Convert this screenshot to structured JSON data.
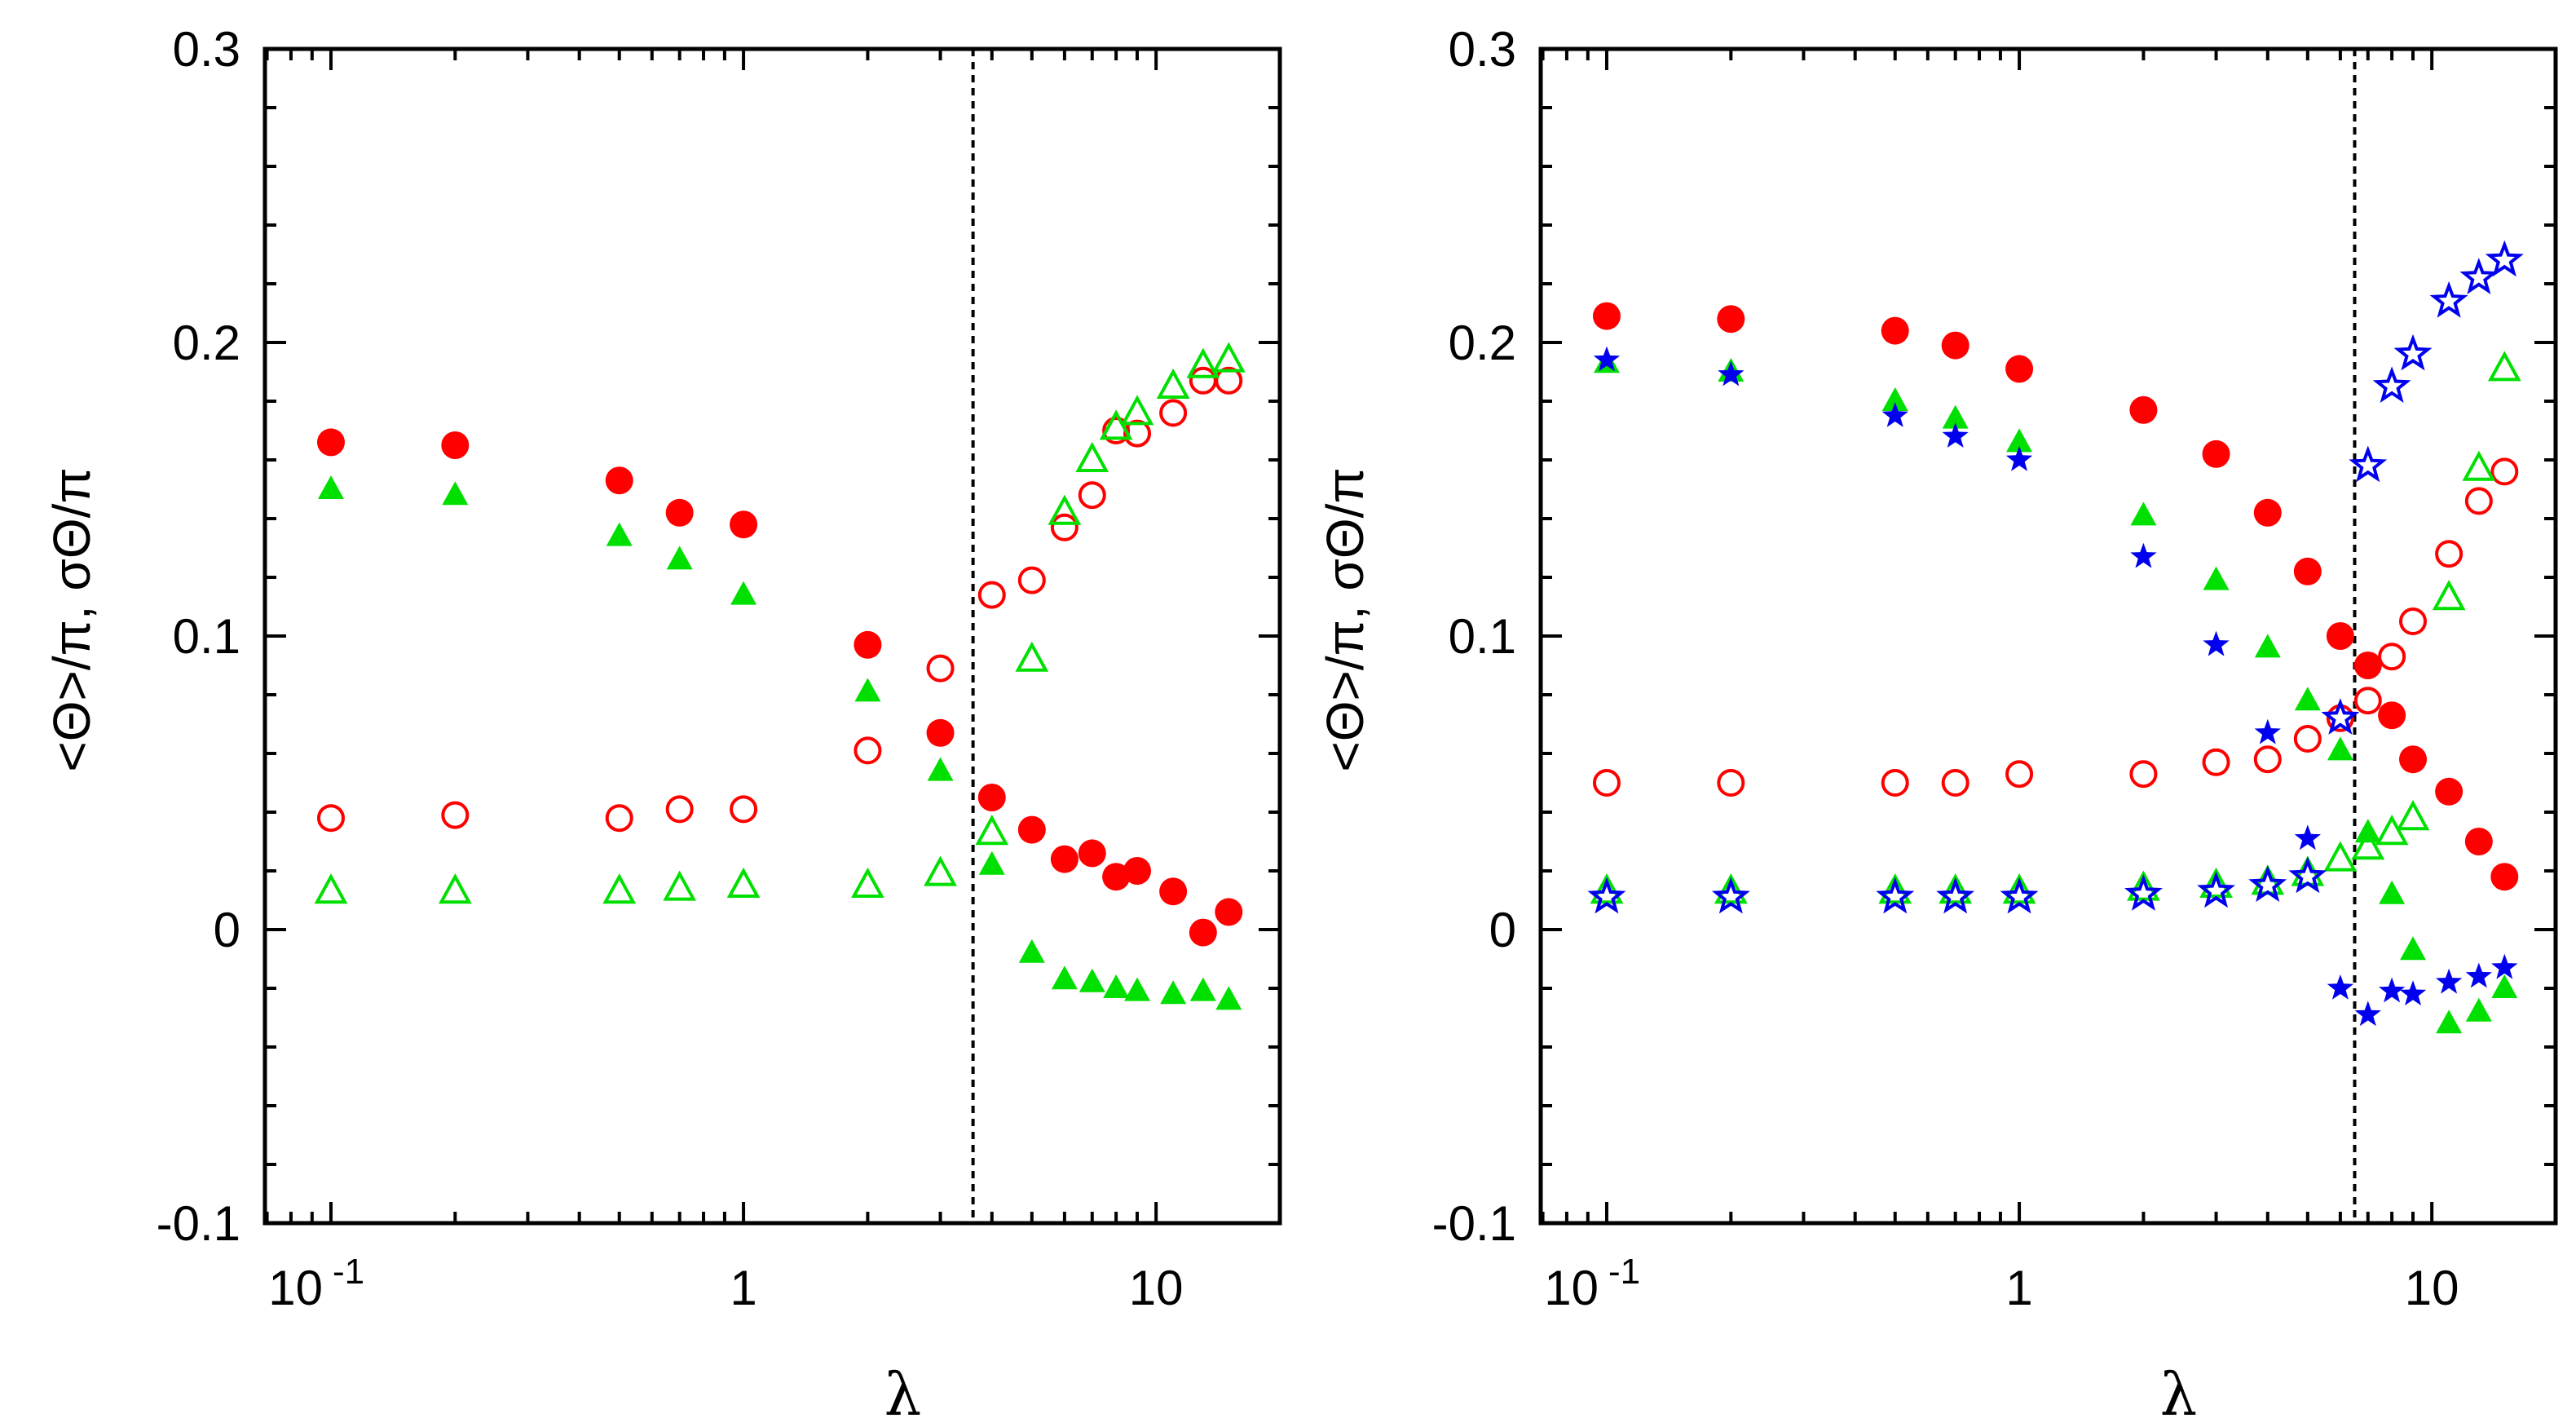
{
  "colors": {
    "red": "#ff0000",
    "green": "#00e000",
    "blue": "#0000ee",
    "axis": "#000000"
  },
  "chart_data": [
    {
      "type": "scatter",
      "xscale": "log",
      "xlabel": "λ",
      "ylabel": "<Θ>/π, σΘ/π",
      "ylim": [
        -0.1,
        0.3
      ],
      "xlim_log10": [
        -1.16,
        1.3
      ],
      "yticks": [
        "-0.1",
        "0",
        "0.1",
        "0.2",
        "0.3"
      ],
      "xticks": [
        {
          "base": "10",
          "exp": "-1"
        },
        {
          "base": "1",
          "exp": ""
        },
        {
          "base": "10",
          "exp": ""
        }
      ],
      "vline_x": 3.6,
      "series": [
        {
          "name": "red-mean",
          "marker": "circle-filled",
          "color": "red",
          "x": [
            0.1,
            0.2,
            0.5,
            0.7,
            1.0,
            2.0,
            3.0,
            4.0,
            5.0,
            6.0,
            7.0,
            8.0,
            9.0,
            11.0,
            13.0,
            15.0
          ],
          "y": [
            0.166,
            0.165,
            0.153,
            0.142,
            0.138,
            0.097,
            0.067,
            0.045,
            0.034,
            0.024,
            0.026,
            0.018,
            0.02,
            0.013,
            -0.001,
            0.006
          ]
        },
        {
          "name": "red-sigma",
          "marker": "circle-open",
          "color": "red",
          "x": [
            0.1,
            0.2,
            0.5,
            0.7,
            1.0,
            2.0,
            3.0,
            4.0,
            5.0,
            6.0,
            7.0,
            8.0,
            9.0,
            11.0,
            13.0,
            15.0
          ],
          "y": [
            0.038,
            0.039,
            0.038,
            0.041,
            0.041,
            0.061,
            0.089,
            0.114,
            0.119,
            0.137,
            0.148,
            0.17,
            0.169,
            0.176,
            0.187,
            0.187
          ]
        },
        {
          "name": "green-mean",
          "marker": "triangle-filled",
          "color": "green",
          "x": [
            0.1,
            0.2,
            0.5,
            0.7,
            1.0,
            2.0,
            3.0,
            4.0,
            5.0,
            6.0,
            7.0,
            8.0,
            9.0,
            11.0,
            13.0,
            15.0
          ],
          "y": [
            0.15,
            0.148,
            0.134,
            0.126,
            0.114,
            0.081,
            0.054,
            0.022,
            -0.008,
            -0.017,
            -0.018,
            -0.02,
            -0.021,
            -0.022,
            -0.021,
            -0.024
          ]
        },
        {
          "name": "green-sigma",
          "marker": "triangle-open",
          "color": "green",
          "x": [
            0.1,
            0.2,
            0.5,
            0.7,
            1.0,
            2.0,
            3.0,
            4.0,
            5.0,
            6.0,
            7.0,
            8.0,
            9.0,
            11.0,
            13.0,
            15.0
          ],
          "y": [
            0.013,
            0.013,
            0.013,
            0.014,
            0.015,
            0.015,
            0.019,
            0.033,
            0.092,
            0.142,
            0.16,
            0.171,
            0.176,
            0.185,
            0.192,
            0.194
          ]
        }
      ]
    },
    {
      "type": "scatter",
      "xscale": "log",
      "xlabel": "λ",
      "ylabel": "<Θ>/π, σΘ/π",
      "ylim": [
        -0.1,
        0.3
      ],
      "xlim_log10": [
        -1.16,
        1.3
      ],
      "yticks": [
        "-0.1",
        "0",
        "0.1",
        "0.2",
        "0.3"
      ],
      "xticks": [
        {
          "base": "10",
          "exp": "-1"
        },
        {
          "base": "1",
          "exp": ""
        },
        {
          "base": "10",
          "exp": ""
        }
      ],
      "vline_x": 6.5,
      "series": [
        {
          "name": "red-mean",
          "marker": "circle-filled",
          "color": "red",
          "x": [
            0.1,
            0.2,
            0.5,
            0.7,
            1.0,
            2.0,
            3.0,
            4.0,
            5.0,
            6.0,
            7.0,
            8.0,
            9.0,
            11.0,
            13.0,
            15.0
          ],
          "y": [
            0.209,
            0.208,
            0.204,
            0.199,
            0.191,
            0.177,
            0.162,
            0.142,
            0.122,
            0.1,
            0.09,
            0.073,
            0.058,
            0.047,
            0.03,
            0.018
          ]
        },
        {
          "name": "red-sigma",
          "marker": "circle-open",
          "color": "red",
          "x": [
            0.1,
            0.2,
            0.5,
            0.7,
            1.0,
            2.0,
            3.0,
            4.0,
            5.0,
            6.0,
            7.0,
            8.0,
            9.0,
            11.0,
            13.0,
            15.0
          ],
          "y": [
            0.05,
            0.05,
            0.05,
            0.05,
            0.053,
            0.053,
            0.057,
            0.058,
            0.065,
            0.072,
            0.078,
            0.093,
            0.105,
            0.128,
            0.146,
            0.156
          ]
        },
        {
          "name": "green-mean",
          "marker": "triangle-filled",
          "color": "green",
          "x": [
            0.1,
            0.2,
            0.5,
            0.7,
            1.0,
            2.0,
            3.0,
            4.0,
            5.0,
            6.0,
            7.0,
            8.0,
            9.0,
            11.0,
            13.0,
            15.0
          ],
          "y": [
            0.193,
            0.19,
            0.18,
            0.174,
            0.166,
            0.141,
            0.119,
            0.096,
            0.078,
            0.061,
            0.033,
            0.012,
            -0.007,
            -0.032,
            -0.028,
            -0.02
          ]
        },
        {
          "name": "green-sigma",
          "marker": "triangle-open",
          "color": "green",
          "x": [
            0.1,
            0.2,
            0.5,
            0.7,
            1.0,
            2.0,
            3.0,
            4.0,
            5.0,
            6.0,
            7.0,
            8.0,
            9.0,
            11.0,
            13.0,
            15.0
          ],
          "y": [
            0.013,
            0.013,
            0.013,
            0.013,
            0.013,
            0.014,
            0.015,
            0.016,
            0.019,
            0.024,
            0.028,
            0.033,
            0.038,
            0.113,
            0.157,
            0.191
          ]
        },
        {
          "name": "blue-mean",
          "marker": "star-filled",
          "color": "blue",
          "x": [
            0.1,
            0.2,
            0.5,
            0.7,
            1.0,
            2.0,
            3.0,
            4.0,
            5.0,
            6.0,
            7.0,
            8.0,
            9.0,
            11.0,
            13.0,
            15.0
          ],
          "y": [
            0.194,
            0.189,
            0.175,
            0.168,
            0.16,
            0.127,
            0.097,
            0.067,
            0.031,
            -0.02,
            -0.029,
            -0.021,
            -0.022,
            -0.018,
            -0.016,
            -0.013
          ]
        },
        {
          "name": "blue-sigma",
          "marker": "star-open",
          "color": "blue",
          "x": [
            0.1,
            0.2,
            0.5,
            0.7,
            1.0,
            2.0,
            3.0,
            4.0,
            5.0,
            6.0,
            7.0,
            8.0,
            9.0,
            11.0,
            13.0,
            15.0
          ],
          "y": [
            0.011,
            0.011,
            0.011,
            0.011,
            0.011,
            0.012,
            0.013,
            0.015,
            0.018,
            0.072,
            0.158,
            0.185,
            0.196,
            0.214,
            0.222,
            0.228
          ]
        }
      ]
    }
  ]
}
